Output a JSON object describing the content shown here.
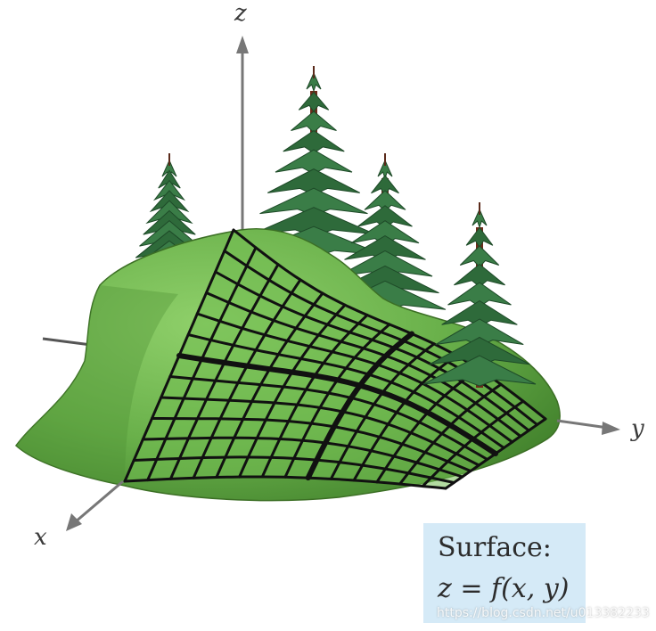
{
  "axes": {
    "x_label": "x",
    "y_label": "y",
    "z_label": "z"
  },
  "caption": {
    "line1": "Surface:",
    "line2": "z = f(x, y)"
  },
  "watermark": "https://blog.csdn.net/u013382233",
  "colors": {
    "surface_fill": "#69b04a",
    "surface_dark": "#3f7e2a",
    "grid_lines": "#111111",
    "axis": "#777777",
    "tree_foliage": "#2e6a3a",
    "tree_trunk": "#6b2c1a",
    "caption_bg": "#d5eaf7"
  },
  "icons": [
    "tree-icon",
    "surface-mesh"
  ]
}
